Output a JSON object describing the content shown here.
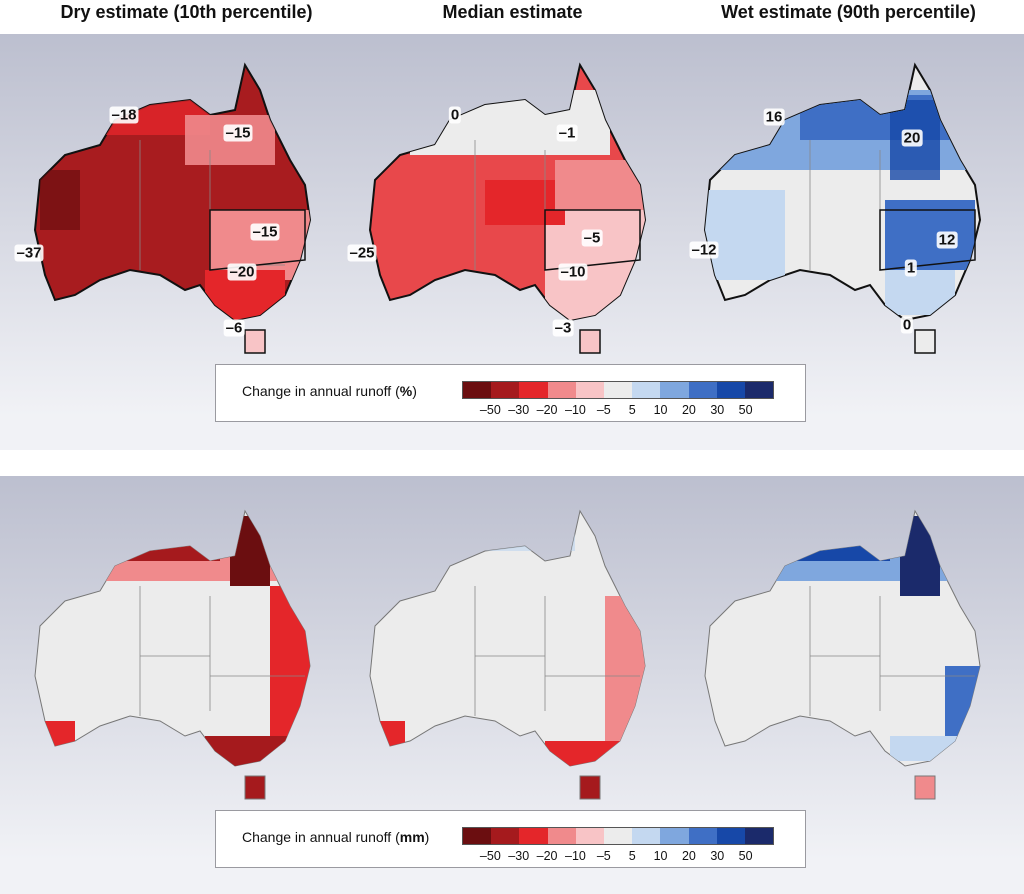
{
  "titles": {
    "dry": "Dry estimate (10th percentile)",
    "median": "Median estimate",
    "wet": "Wet estimate (90th percentile)"
  },
  "top_panel": {
    "maps": [
      {
        "id": "dry",
        "labels": [
          "–18",
          "–15",
          "–15",
          "–20",
          "–37",
          "–6"
        ]
      },
      {
        "id": "median",
        "labels": [
          "0",
          "–1",
          "–5",
          "–10",
          "–25",
          "–3"
        ]
      },
      {
        "id": "wet",
        "labels": [
          "16",
          "20",
          "12",
          "1",
          "–12",
          "0"
        ]
      }
    ],
    "legend": {
      "title_prefix": "Change in annual runoff (",
      "unit": "%",
      "title_suffix": ")"
    }
  },
  "bottom_panel": {
    "legend": {
      "title_prefix": "Change in annual runoff (",
      "unit": "mm",
      "title_suffix": ")"
    }
  },
  "legend_ticks": [
    "–50",
    "–30",
    "–20",
    "–10",
    "–5",
    "5",
    "10",
    "20",
    "30",
    "50"
  ],
  "legend_colors": [
    "#6b0e10",
    "#a51a1d",
    "#e4262a",
    "#f08a8c",
    "#f8c4c6",
    "#ececec",
    "#c4d8f0",
    "#7fa7de",
    "#3f6fc5",
    "#1748a8",
    "#1b2a6b"
  ],
  "colors": {
    "dry_fill": "#a81c1f",
    "median_fill": "#e8484b",
    "wet_fill": "#8db3e4",
    "land_grey": "#ececec",
    "coast": "#111111"
  }
}
